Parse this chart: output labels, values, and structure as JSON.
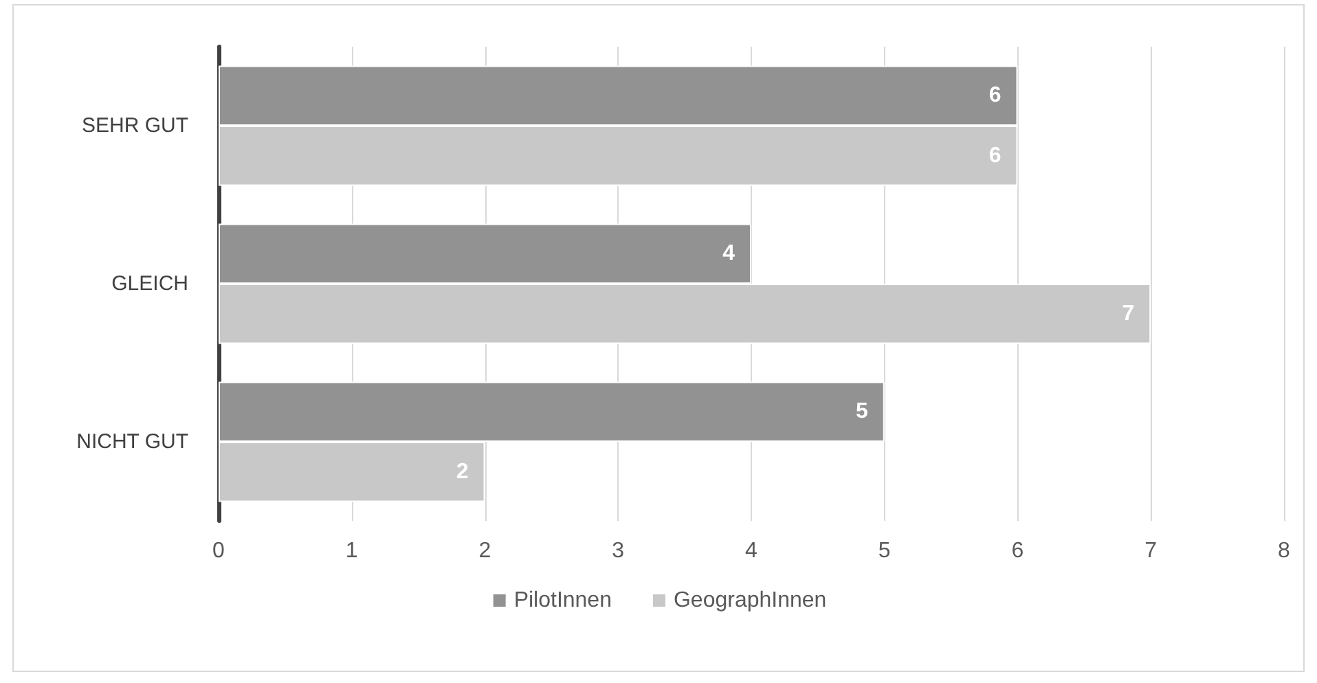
{
  "chart_data": {
    "type": "bar",
    "orientation": "horizontal",
    "categories": [
      "SEHR GUT",
      "GLEICH",
      "NICHT GUT"
    ],
    "series": [
      {
        "name": "PilotInnen",
        "color": "#929292",
        "values": [
          6,
          4,
          5
        ]
      },
      {
        "name": "GeographInnen",
        "color": "#c8c8c8",
        "values": [
          6,
          7,
          2
        ]
      }
    ],
    "xlim": [
      0,
      8
    ],
    "xticks": [
      0,
      1,
      2,
      3,
      4,
      5,
      6,
      7,
      8
    ],
    "grid": "x",
    "legend": "bottom",
    "data_labels": true
  }
}
